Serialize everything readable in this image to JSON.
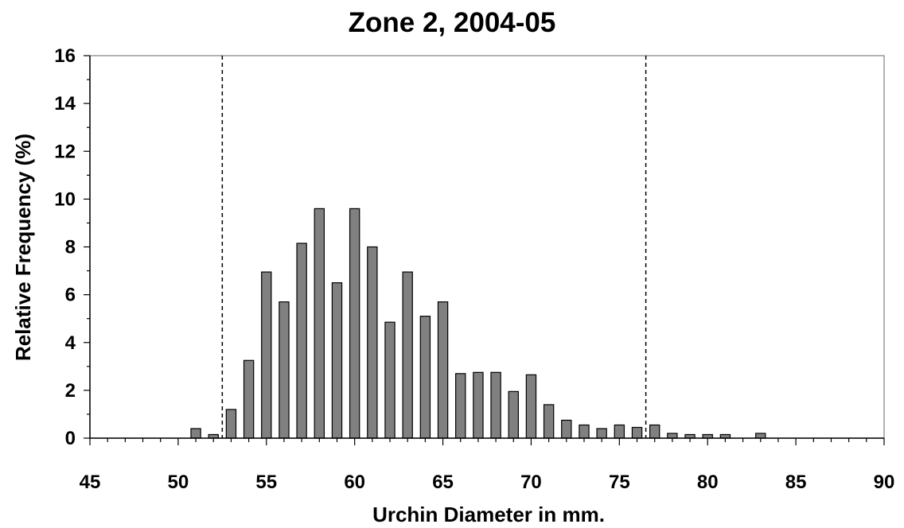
{
  "chart_data": {
    "type": "bar",
    "title": "Zone 2, 2004-05",
    "xlabel": "Urchin Diameter in mm.",
    "ylabel": "Relative Frequency (%)",
    "xlim": [
      45,
      90
    ],
    "ylim": [
      0,
      16
    ],
    "x_ticks": [
      "45",
      "50",
      "55",
      "60",
      "65",
      "70",
      "75",
      "80",
      "85",
      "90"
    ],
    "y_ticks": [
      "0",
      "2",
      "4",
      "6",
      "8",
      "10",
      "12",
      "14",
      "16"
    ],
    "x": [
      51,
      52,
      53,
      54,
      55,
      56,
      57,
      58,
      59,
      60,
      61,
      62,
      63,
      64,
      65,
      66,
      67,
      68,
      69,
      70,
      71,
      72,
      73,
      74,
      75,
      76,
      77,
      78,
      79,
      80,
      81,
      82,
      83
    ],
    "values": [
      0.4,
      0.15,
      1.2,
      3.25,
      6.95,
      5.7,
      8.15,
      9.6,
      6.5,
      9.6,
      8.0,
      4.85,
      6.95,
      5.1,
      5.7,
      2.7,
      2.75,
      2.75,
      1.95,
      2.65,
      1.4,
      0.75,
      0.55,
      0.4,
      0.55,
      0.45,
      0.55,
      0.2,
      0.15,
      0.15,
      0.15,
      0,
      0.2
    ],
    "reference_lines_x": [
      52.5,
      76.5
    ],
    "bar_color": "#808080",
    "grid": false
  }
}
